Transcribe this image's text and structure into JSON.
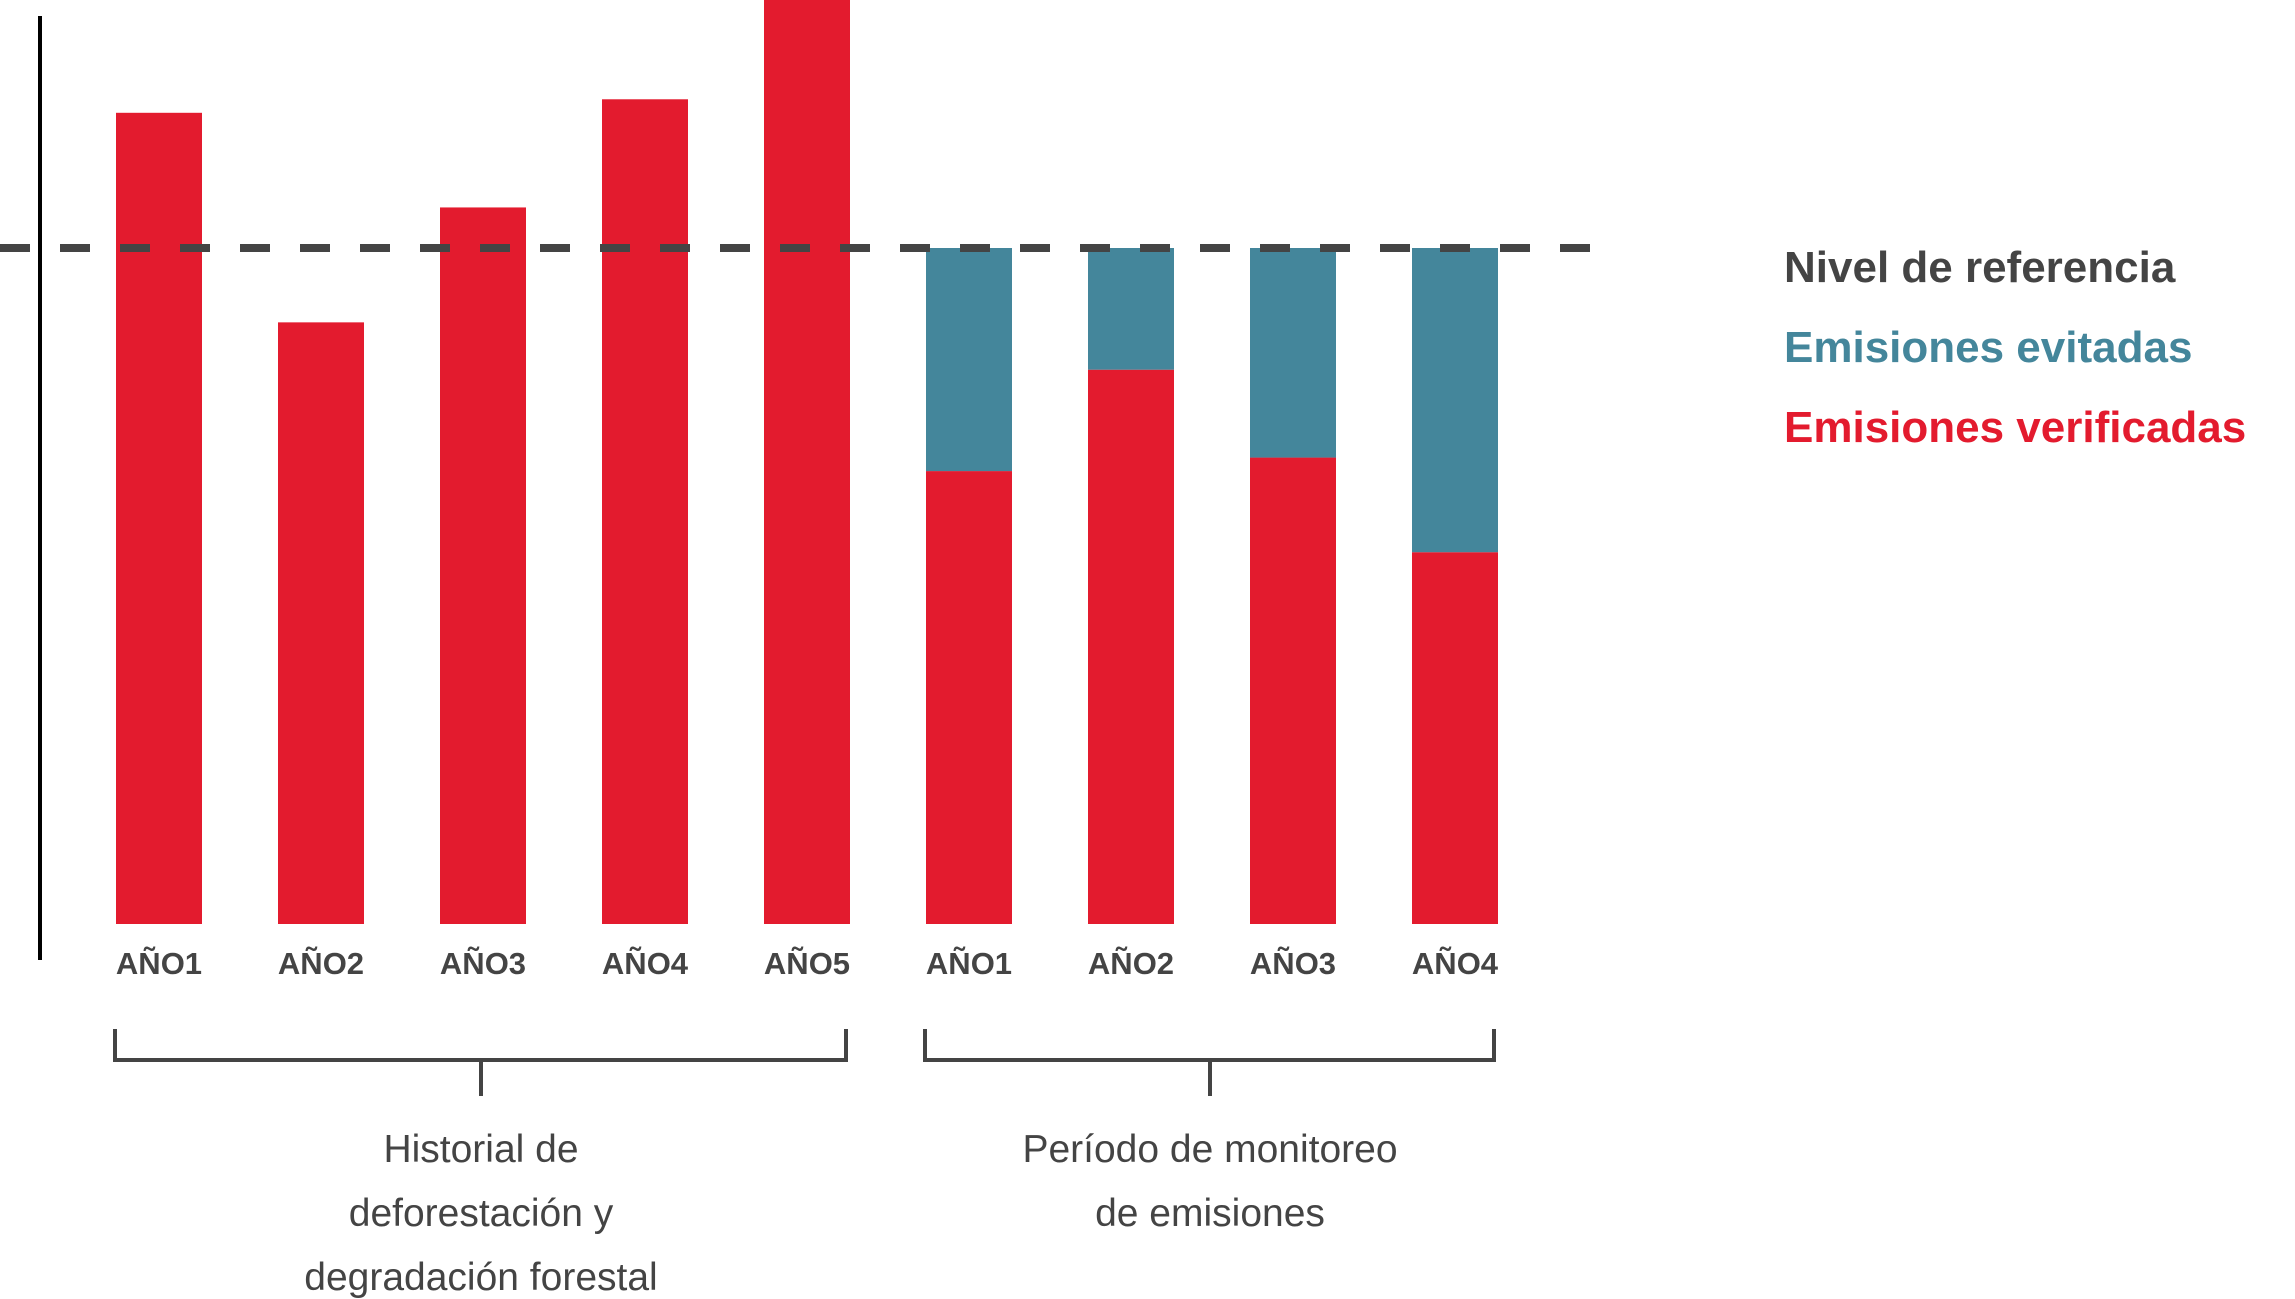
{
  "chart_data": {
    "type": "bar",
    "title": "",
    "xlabel": "",
    "ylabel": "",
    "ylim": [
      0,
      137
    ],
    "grid": false,
    "units_note": "relative to reference level = 100",
    "reference_level": {
      "name": "Nivel de referencia",
      "value": 100
    },
    "categories": [
      "AÑO1",
      "AÑO2",
      "AÑO3",
      "AÑO4",
      "AÑO5",
      "AÑO1",
      "AÑO2",
      "AÑO3",
      "AÑO4"
    ],
    "groups": [
      {
        "label_lines": [
          "Historial de",
          "deforestación y",
          "degradación forestal"
        ],
        "category_indices": [
          0,
          1,
          2,
          3,
          4
        ]
      },
      {
        "label_lines": [
          "Período de monitoreo",
          "de emisiones"
        ],
        "category_indices": [
          5,
          6,
          7,
          8
        ]
      }
    ],
    "series": [
      {
        "name": "Emisiones verificadas",
        "color": "#E31B2E",
        "values": [
          120,
          89,
          106,
          122,
          137,
          67,
          82,
          69,
          55
        ]
      },
      {
        "name": "Emisiones evitadas",
        "color": "#44869B",
        "values": [
          0,
          0,
          0,
          0,
          0,
          33,
          18,
          31,
          45
        ]
      }
    ],
    "legend": {
      "position": "right",
      "entries": [
        {
          "label": "Nivel de referencia",
          "color": "#444444"
        },
        {
          "label": "Emisiones evitadas",
          "color": "#44869B"
        },
        {
          "label": "Emisiones verificadas",
          "color": "#E31B2E"
        }
      ]
    }
  },
  "colors": {
    "axis": "#000000",
    "reference": "#444444",
    "text": "#444444"
  }
}
